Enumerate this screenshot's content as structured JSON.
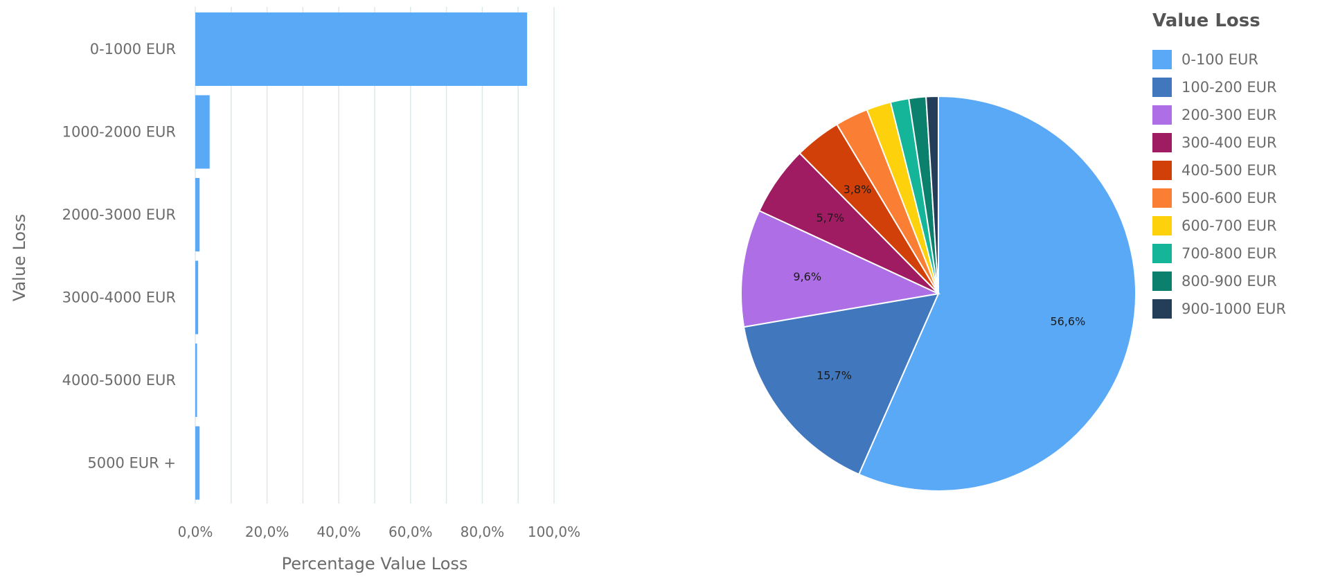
{
  "chart_data": [
    {
      "type": "bar",
      "orientation": "horizontal",
      "categories": [
        "0-1000 EUR",
        "1000-2000 EUR",
        "2000-3000 EUR",
        "3000-4000 EUR",
        "4000-5000 EUR",
        "5000 EUR +"
      ],
      "values": [
        92.5,
        4.0,
        1.2,
        0.8,
        0.3,
        1.2
      ],
      "xlim": [
        0,
        100
      ],
      "xticks": [
        "0,0%",
        "20,0%",
        "40,0%",
        "60,0%",
        "80,0%",
        "100,0%"
      ],
      "xlabel": "Percentage Value Loss",
      "ylabel": "Value Loss",
      "grid": true,
      "colors": {
        "bar": "#5aa9f7",
        "grid": "#dde8ea",
        "axis_text": "#6b6b6b"
      }
    },
    {
      "type": "pie",
      "legend_title": "Value Loss",
      "legend_position": "right",
      "slices": [
        {
          "label": "0-100 EUR",
          "value": 56.6,
          "value_label": "56,6%",
          "color": "#5aa9f7"
        },
        {
          "label": "100-200 EUR",
          "value": 15.7,
          "value_label": "15,7%",
          "color": "#4178bd"
        },
        {
          "label": "200-300 EUR",
          "value": 9.6,
          "value_label": "9,6%",
          "color": "#ad6ee6"
        },
        {
          "label": "300-400 EUR",
          "value": 5.7,
          "value_label": "5,7%",
          "color": "#a01c62"
        },
        {
          "label": "400-500 EUR",
          "value": 3.8,
          "value_label": "3,8%",
          "color": "#d2400a"
        },
        {
          "label": "500-600 EUR",
          "value": 2.7,
          "value_label": "",
          "color": "#fb7e35"
        },
        {
          "label": "600-700 EUR",
          "value": 2.0,
          "value_label": "",
          "color": "#fdd10c"
        },
        {
          "label": "700-800 EUR",
          "value": 1.5,
          "value_label": "",
          "color": "#15b59a"
        },
        {
          "label": "800-900 EUR",
          "value": 1.4,
          "value_label": "",
          "color": "#0b806d"
        },
        {
          "label": "900-1000 EUR",
          "value": 1.0,
          "value_label": "",
          "color": "#243e5a"
        }
      ]
    }
  ]
}
